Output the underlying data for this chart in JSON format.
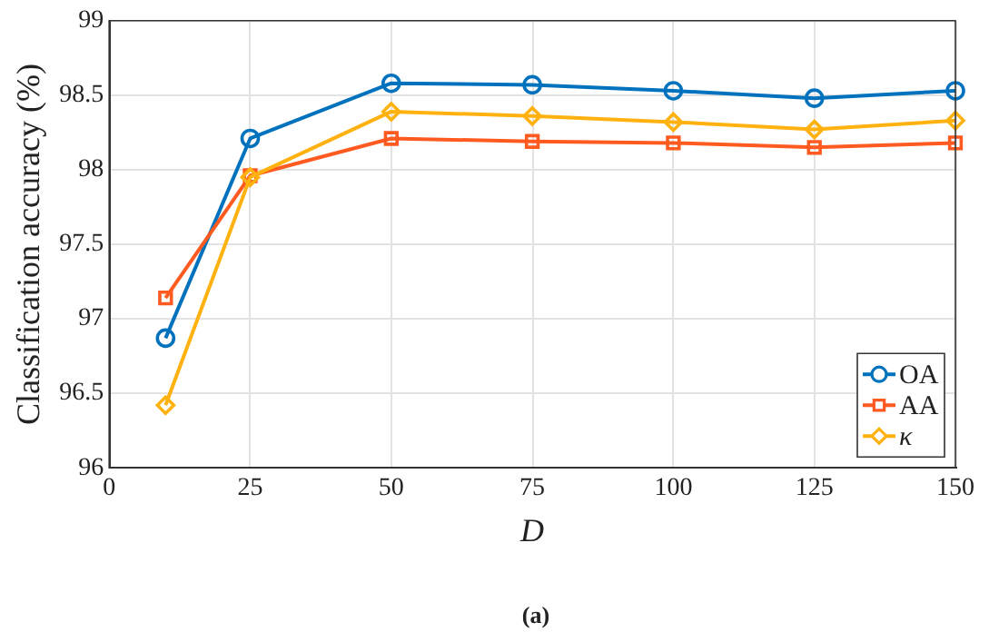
{
  "chart_data": {
    "type": "line",
    "xlabel": "D",
    "ylabel": "Classification accuracy (%)",
    "x": [
      10,
      25,
      50,
      75,
      100,
      125,
      150
    ],
    "series": [
      {
        "name": "OA",
        "color": "#0072bd",
        "marker": "circle",
        "values": [
          96.87,
          98.21,
          98.58,
          98.57,
          98.53,
          98.48,
          98.53
        ]
      },
      {
        "name": "AA",
        "color": "#ff5a1f",
        "marker": "square",
        "values": [
          97.14,
          97.96,
          98.21,
          98.19,
          98.18,
          98.15,
          98.18
        ]
      },
      {
        "name": "κ",
        "color": "#ffb20f",
        "marker": "diamond",
        "values": [
          96.42,
          97.95,
          98.39,
          98.36,
          98.32,
          98.27,
          98.33
        ]
      }
    ],
    "xlim": [
      0,
      150
    ],
    "xticks": [
      0,
      25,
      50,
      75,
      100,
      125,
      150
    ],
    "ylim": [
      96,
      99
    ],
    "yticks": [
      96,
      96.5,
      97,
      97.5,
      98,
      98.5,
      99
    ],
    "grid": true,
    "legend": "bottom right",
    "line_style": "solid",
    "annotations": [
      "(a)"
    ]
  }
}
